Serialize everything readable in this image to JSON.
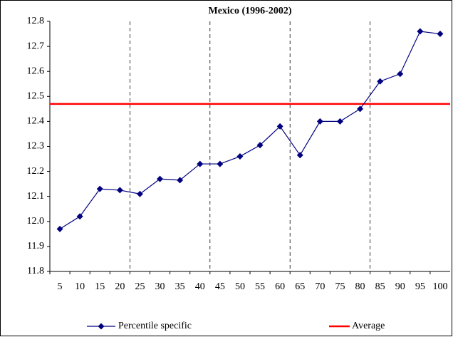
{
  "chart_data": {
    "type": "line",
    "title": "Mexico (1996-2002)",
    "categories": [
      "5",
      "10",
      "15",
      "20",
      "25",
      "30",
      "35",
      "40",
      "45",
      "50",
      "55",
      "60",
      "65",
      "70",
      "75",
      "80",
      "85",
      "90",
      "95",
      "100"
    ],
    "series": [
      {
        "name": "Percentile specific",
        "color": "#000080",
        "values": [
          11.97,
          12.02,
          12.13,
          12.125,
          12.11,
          12.17,
          12.165,
          12.23,
          12.23,
          12.26,
          12.305,
          12.38,
          12.265,
          12.4,
          12.4,
          12.45,
          12.56,
          12.59,
          12.76,
          12.75
        ]
      }
    ],
    "average": {
      "name": "Average",
      "color": "#ff0000",
      "value": 12.47
    },
    "ylim": [
      11.8,
      12.8
    ],
    "yticks": [
      11.8,
      11.9,
      {
        "value": 12,
        "label": "12.0"
      },
      12.1,
      12.2,
      12.3,
      12.4,
      12.5,
      12.6,
      12.7,
      12.8
    ]
  }
}
